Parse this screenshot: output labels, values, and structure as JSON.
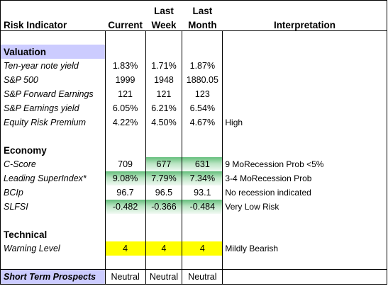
{
  "header": {
    "risk_indicator": "Risk Indicator",
    "current": "Current",
    "last_week_top": "Last",
    "last_week_bottom": "Week",
    "last_month_top": "Last",
    "last_month_bottom": "Month",
    "interpretation": "Interpretation"
  },
  "sections": {
    "valuation": "Valuation",
    "economy": "Economy",
    "technical": "Technical"
  },
  "rows": {
    "ten_year": {
      "label": "Ten-year note yield",
      "current": "1.83%",
      "last_week": "1.71%",
      "last_month": "1.87%",
      "interp": ""
    },
    "sp500": {
      "label": "S&P 500",
      "current": "1999",
      "last_week": "1948",
      "last_month": "1880.05",
      "interp": ""
    },
    "fwd_earnings": {
      "label": "S&P Forward Earnings",
      "current": "121",
      "last_week": "121",
      "last_month": "123",
      "interp": ""
    },
    "earn_yield": {
      "label": "S&P Earnings yield",
      "current": "6.05%",
      "last_week": "6.21%",
      "last_month": "6.54%",
      "interp": ""
    },
    "erp": {
      "label": "Equity Risk Premium",
      "current": "4.22%",
      "last_week": "4.50%",
      "last_month": "4.67%",
      "interp": "High"
    },
    "cscore": {
      "label": "C-Score",
      "current": "709",
      "last_week": "677",
      "last_month": "631",
      "interp": "9 MoRecession Prob <5%"
    },
    "lsi": {
      "label": "Leading SuperIndex*",
      "current": "9.08%",
      "last_week": "7.79%",
      "last_month": "7.34%",
      "interp": "3-4 MoRecession Prob"
    },
    "bcip": {
      "label": "BCIp",
      "current": "96.7",
      "last_week": "96.5",
      "last_month": "93.1",
      "interp": "No recession indicated"
    },
    "slfsi": {
      "label": "SLFSI",
      "current": "-0.482",
      "last_week": "-0.366",
      "last_month": "-0.484",
      "interp": "Very Low Risk"
    },
    "warning": {
      "label": "Warning Level",
      "current": "4",
      "last_week": "4",
      "last_month": "4",
      "interp": "Mildly Bearish"
    },
    "short_term": {
      "label": "Short Term Prospects",
      "current": "Neutral",
      "last_week": "Neutral",
      "last_month": "Neutral",
      "interp": ""
    }
  },
  "colors": {
    "section_bg": "#ccccff",
    "highlight_green": "#63be7b",
    "warning_yellow": "#ffff00"
  }
}
